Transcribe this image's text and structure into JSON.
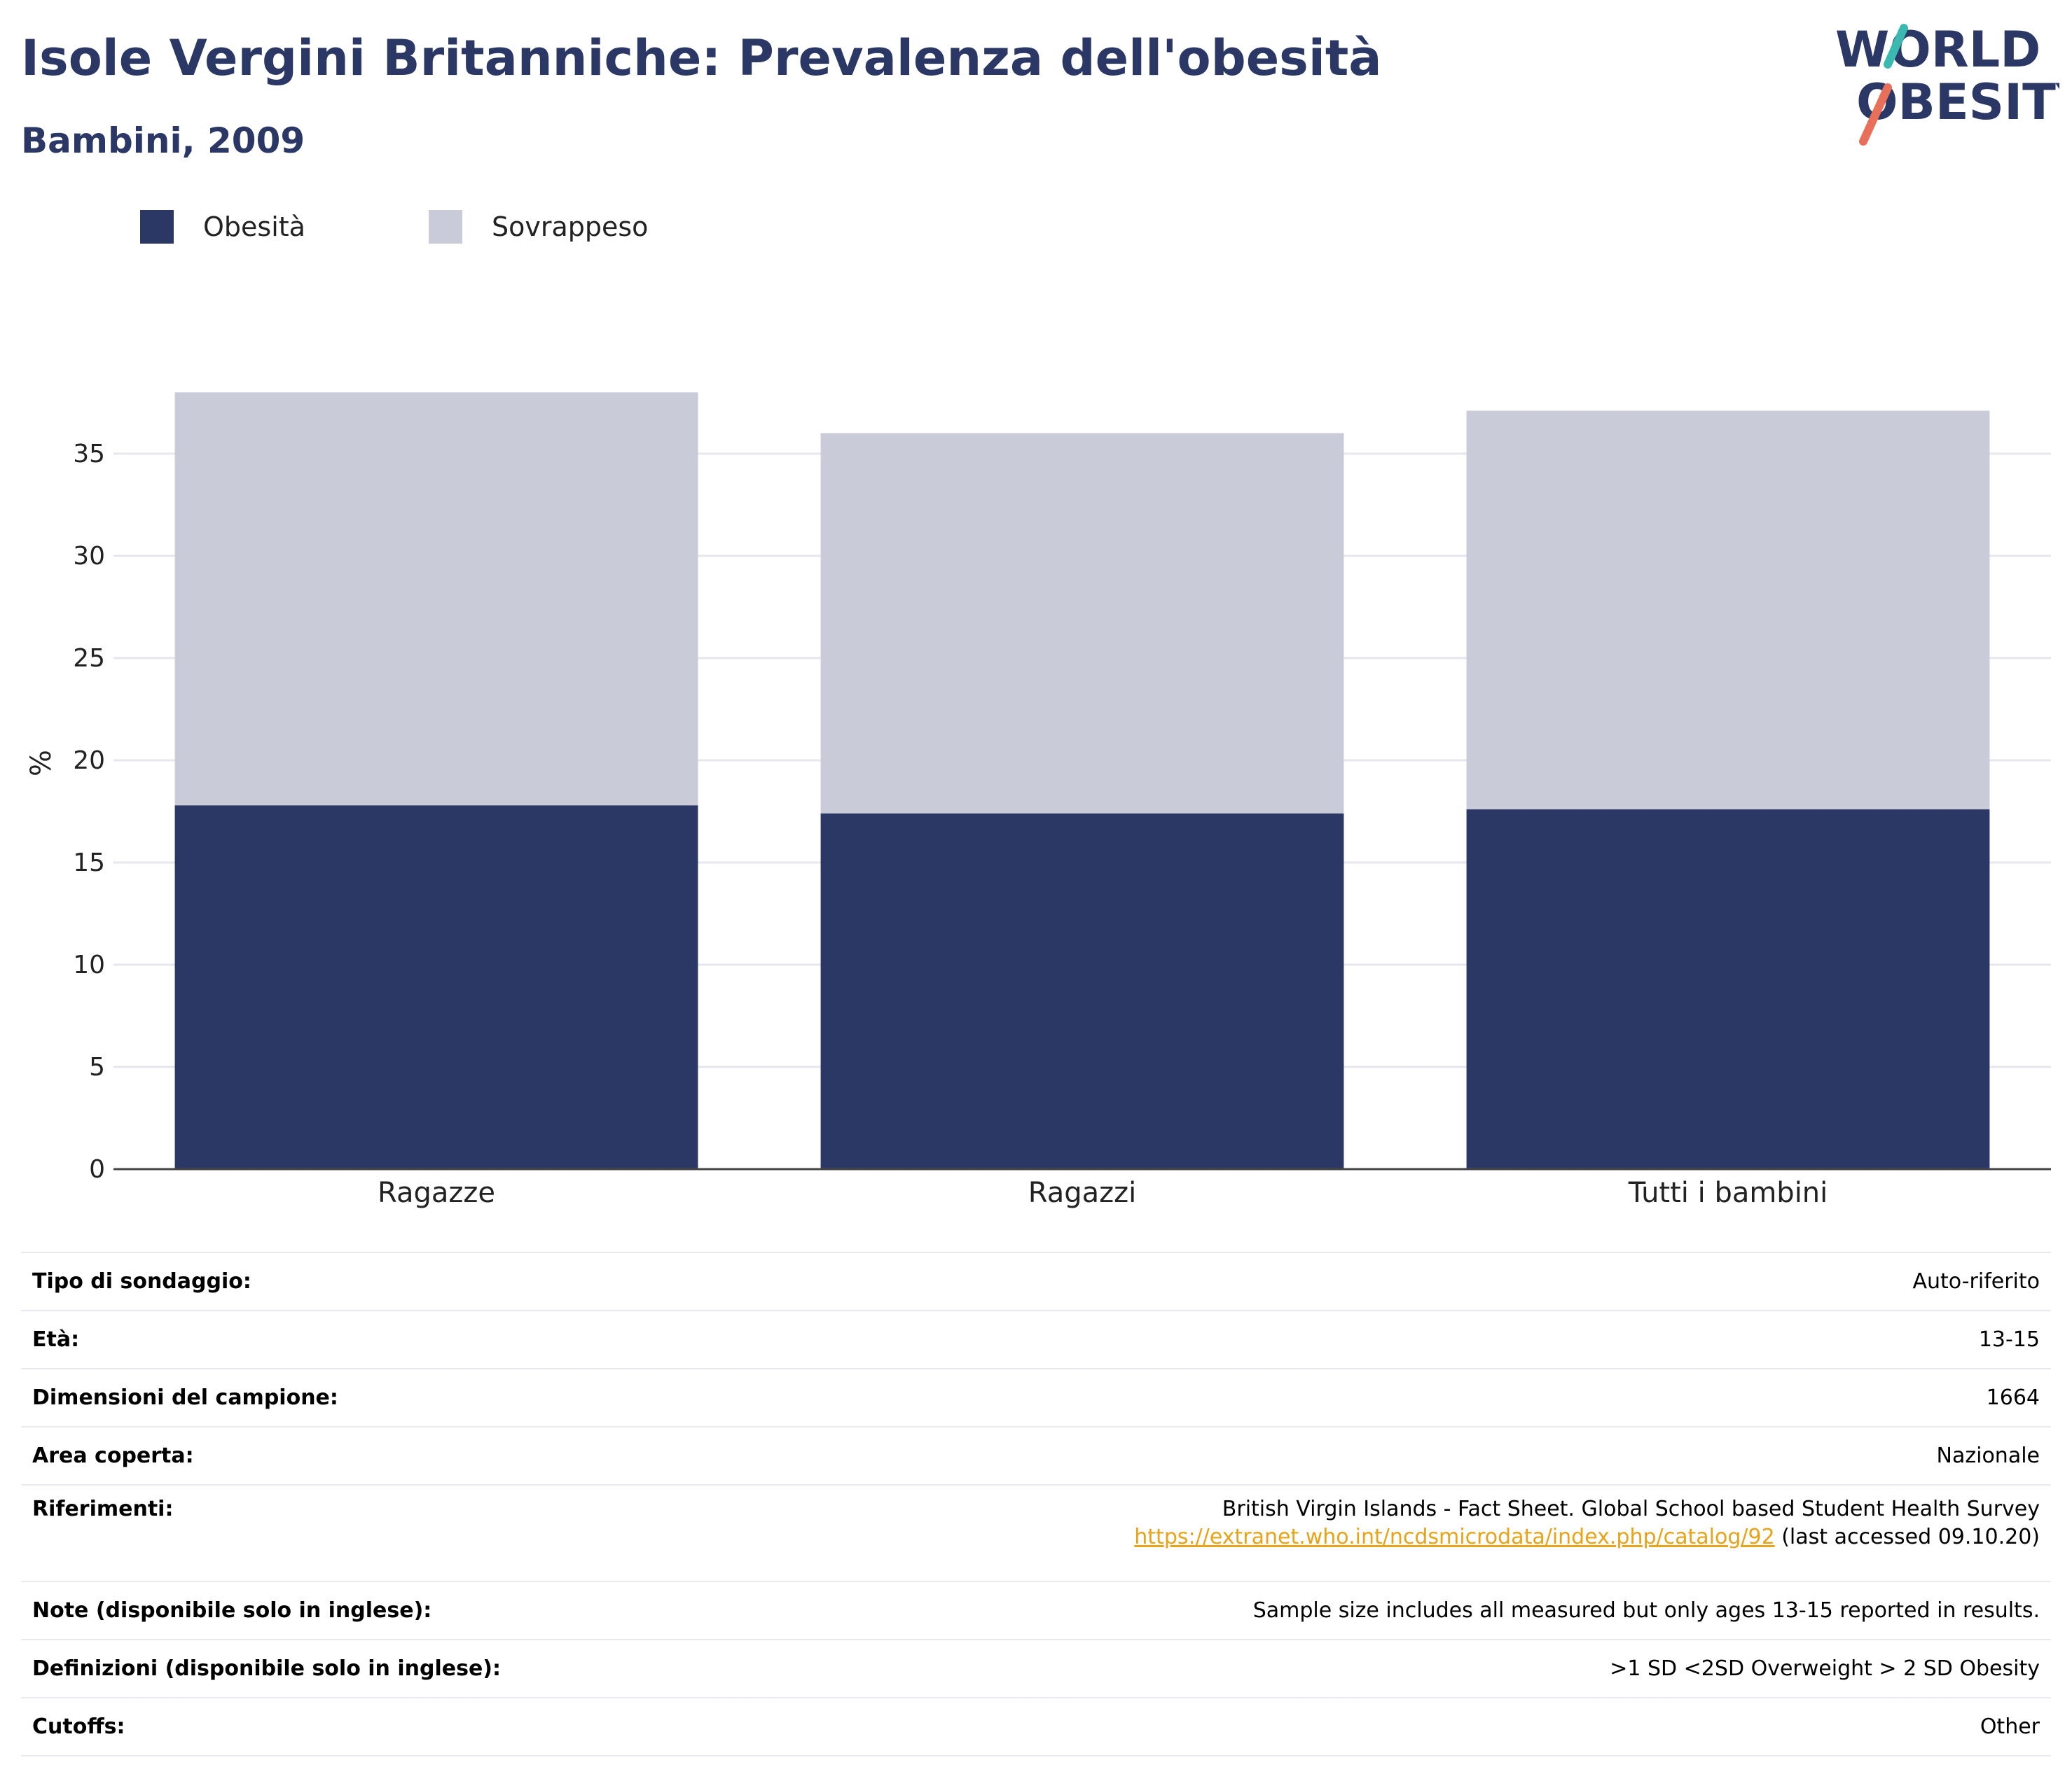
{
  "header": {
    "title": "Isole Vergini Britanniche: Prevalenza dell'obesità",
    "subtitle": "Bambini, 2009"
  },
  "logo": {
    "line1": "WORLD",
    "line2": "OBESITY",
    "colors": {
      "text": "#2b3765",
      "teal": "#3bb8b0",
      "coral": "#e8705a"
    }
  },
  "chart_data": {
    "type": "bar",
    "stacked": true,
    "categories": [
      "Ragazze",
      "Ragazzi",
      "Tutti i bambini"
    ],
    "series": [
      {
        "name": "Obesità",
        "color": "#2b3765",
        "values": [
          17.8,
          17.4,
          17.6
        ]
      },
      {
        "name": "Sovrappeso",
        "color": "#c9ccd8",
        "values": [
          20.2,
          18.6,
          19.5
        ]
      }
    ],
    "title": "",
    "xlabel": "",
    "ylabel": "%",
    "ylim": [
      0,
      40
    ],
    "yticks": [
      0,
      5,
      10,
      15,
      20,
      25,
      30,
      35
    ],
    "grid": true,
    "legend": "top-left"
  },
  "info": {
    "rows": [
      {
        "key": "Tipo di sondaggio:",
        "value": "Auto-riferito"
      },
      {
        "key": "Età:",
        "value": "13-15"
      },
      {
        "key": "Dimensioni del campione:",
        "value": "1664"
      },
      {
        "key": "Area coperta:",
        "value": "Nazionale"
      },
      {
        "key": "Riferimenti:",
        "value": "British Virgin Islands - Fact Sheet. Global School based Student Health Survey",
        "link": "https://extranet.who.int/ncdsmicrodata/index.php/catalog/92",
        "suffix": " (last accessed 09.10.20)"
      },
      {
        "key": "Note (disponibile solo in inglese):",
        "value": "Sample size includes all measured but only ages 13-15 reported in results."
      },
      {
        "key": "Definizioni (disponibile solo in inglese):",
        "value": ">1 SD <2SD Overweight > 2 SD Obesity"
      },
      {
        "key": "Cutoffs:",
        "value": "Other"
      }
    ]
  }
}
